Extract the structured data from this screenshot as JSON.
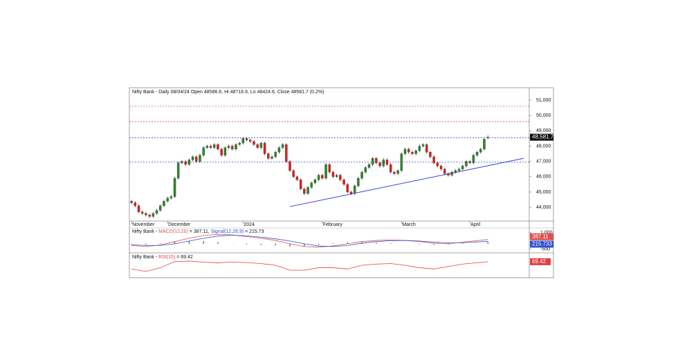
{
  "chart_data": {
    "type": "candlestick",
    "title": "Nifty Bank - Daily 08/04/24 Open 48586.6, Hi 48716.9, Lo 48424.6, Close 48581.7 (0.2%)",
    "up_color": "#2a8a2a",
    "down_color": "#e0201a",
    "xlim": [
      -0.6,
      110.5
    ],
    "xticks": [
      {
        "value": 0,
        "label": "November"
      },
      {
        "value": 10,
        "label": "December"
      },
      {
        "value": 31,
        "label": "2024"
      },
      {
        "value": 53,
        "label": "February"
      },
      {
        "value": 75,
        "label": "March"
      },
      {
        "value": 94,
        "label": "April"
      }
    ],
    "ylim": [
      43100,
      51770
    ],
    "yticks": [
      {
        "value": 44000,
        "label": "44,000"
      },
      {
        "value": 45000,
        "label": "45,000"
      },
      {
        "value": 46000,
        "label": "46,000"
      },
      {
        "value": 47000,
        "label": "47,000"
      },
      {
        "value": 48000,
        "label": "48,000"
      },
      {
        "value": 49000,
        "label": "49,000"
      },
      {
        "value": 50000,
        "label": "50,000"
      },
      {
        "value": 51000,
        "label": "51,000"
      }
    ],
    "close_label": "48,581.7",
    "open": [
      44400,
      44300,
      44100,
      43700,
      43600,
      43500,
      43400,
      43600,
      43800,
      44100,
      44400,
      44600,
      44700,
      45900,
      46900,
      47000,
      46800,
      47100,
      47300,
      47000,
      47400,
      47900,
      48000,
      47900,
      48100,
      47800,
      47400,
      47900,
      48000,
      47800,
      48100,
      48200,
      48500,
      48400,
      48300,
      48100,
      47900,
      48200,
      47500,
      47200,
      47300,
      47600,
      47900,
      48100,
      47000,
      46400,
      46000,
      45800,
      45200,
      44900,
      45300,
      45600,
      45800,
      46100,
      45900,
      46800,
      46300,
      46000,
      46100,
      45800,
      45500,
      45000,
      44900,
      45400,
      45900,
      46300,
      46600,
      46800,
      47200,
      46900,
      46700,
      47100,
      46800,
      46300,
      46200,
      46400,
      47500,
      47800,
      47600,
      47500,
      47700,
      48000,
      48100,
      47600,
      47300,
      46900,
      46700,
      46500,
      46200,
      46100,
      46300,
      46400,
      46500,
      46700,
      47000,
      46900,
      47400,
      47600,
      47800,
      48586.6
    ],
    "high": [
      44500,
      44400,
      44200,
      43800,
      43700,
      43600,
      43700,
      43900,
      44200,
      44500,
      44700,
      44800,
      46000,
      47000,
      47100,
      47100,
      47200,
      47400,
      47400,
      47500,
      48000,
      48100,
      48100,
      48200,
      48200,
      47900,
      48000,
      48100,
      48100,
      48200,
      48300,
      48600,
      48600,
      48500,
      48400,
      48200,
      48300,
      48300,
      47600,
      47400,
      47700,
      48000,
      48200,
      48200,
      47100,
      46500,
      46100,
      45900,
      45300,
      45400,
      45700,
      45900,
      46200,
      46200,
      46900,
      46900,
      46400,
      46200,
      46200,
      45900,
      45600,
      45100,
      45500,
      46000,
      46400,
      46700,
      46900,
      47300,
      47300,
      47000,
      47200,
      47200,
      46900,
      46400,
      46500,
      47600,
      47900,
      47900,
      47700,
      47800,
      48100,
      48200,
      48200,
      47700,
      47400,
      47000,
      46800,
      46600,
      46300,
      46400,
      46500,
      46600,
      46800,
      47100,
      47100,
      47500,
      47700,
      47900,
      48550,
      48716.9
    ],
    "low": [
      44200,
      44000,
      43600,
      43500,
      43400,
      43300,
      43300,
      43500,
      43700,
      44000,
      44300,
      44500,
      44600,
      45800,
      46800,
      46700,
      46700,
      47000,
      46900,
      46900,
      47300,
      47800,
      47800,
      47800,
      47700,
      47300,
      47300,
      47800,
      47700,
      47700,
      48000,
      48100,
      48300,
      48200,
      48000,
      47800,
      47800,
      47400,
      47100,
      47100,
      47200,
      47500,
      47800,
      46900,
      46300,
      45900,
      45700,
      45100,
      44800,
      44800,
      45200,
      45500,
      45700,
      45800,
      45800,
      46200,
      45900,
      45900,
      45700,
      45400,
      44900,
      44800,
      44800,
      45300,
      45800,
      46200,
      46500,
      46700,
      46800,
      46600,
      46600,
      46700,
      46200,
      46100,
      46100,
      46300,
      47400,
      47500,
      47400,
      47400,
      47600,
      47900,
      47500,
      47200,
      46800,
      46600,
      46400,
      46100,
      46000,
      46000,
      46200,
      46300,
      46400,
      46600,
      46800,
      46800,
      47300,
      47500,
      47700,
      48424.6
    ],
    "close": [
      44300,
      44100,
      43700,
      43600,
      43500,
      43400,
      43600,
      43800,
      44100,
      44400,
      44600,
      44700,
      45900,
      46900,
      47000,
      46800,
      47100,
      47300,
      47000,
      47400,
      47900,
      48000,
      47900,
      48100,
      47800,
      47400,
      47900,
      48000,
      47800,
      48100,
      48200,
      48500,
      48400,
      48300,
      48100,
      47900,
      48200,
      47500,
      47200,
      47300,
      47600,
      47900,
      48100,
      47000,
      46400,
      46000,
      45800,
      45200,
      44900,
      45300,
      45600,
      45800,
      46100,
      45900,
      46800,
      46300,
      46000,
      46100,
      45800,
      45500,
      45000,
      44900,
      45400,
      45900,
      46300,
      46600,
      46800,
      47200,
      46900,
      46700,
      47100,
      46800,
      46300,
      46200,
      46400,
      47500,
      47800,
      47600,
      47500,
      47700,
      48000,
      48100,
      47600,
      47300,
      46900,
      46700,
      46500,
      46200,
      46100,
      46300,
      46400,
      46500,
      46700,
      47000,
      46900,
      47400,
      47600,
      47800,
      48450,
      48581.7
    ],
    "levels": [
      {
        "value": 50600,
        "color": "#e05040"
      },
      {
        "value": 49600,
        "color": "#e05040"
      },
      {
        "value": 48550,
        "color": "#3040c0"
      },
      {
        "value": 46950,
        "color": "#3040c0"
      }
    ],
    "trendline": {
      "x": [
        44,
        109
      ],
      "y": [
        44045,
        47205
      ],
      "color": "#3040d0"
    },
    "macd": {
      "label": [
        "Nifty Bank - ",
        "MACD(12,26)",
        " = 387.11, ",
        "Signal(12,26,9)",
        " = 215.73"
      ],
      "ylim": [
        -820,
        1430
      ],
      "yticks": [
        {
          "value": 1000,
          "label": "1,000"
        },
        -500
      ],
      "x": [
        0,
        4,
        8,
        12,
        16,
        20,
        24,
        28,
        32,
        36,
        40,
        44,
        48,
        52,
        56,
        60,
        64,
        68,
        72,
        76,
        80,
        84,
        88,
        92,
        99
      ],
      "series": [
        {
          "name": "MACD",
          "color": "#e05050",
          "last_label": "387.11",
          "values": [
            -150,
            -250,
            -100,
            200,
            500,
            750,
            850,
            800,
            650,
            500,
            300,
            0,
            -250,
            -300,
            -200,
            0,
            200,
            300,
            350,
            300,
            200,
            50,
            0,
            150,
            387.11
          ]
        },
        {
          "name": "Signal",
          "color": "#3050d0",
          "last_label": "215.733",
          "values": [
            -100,
            -150,
            -150,
            0,
            250,
            500,
            700,
            780,
            720,
            600,
            450,
            250,
            0,
            -200,
            -250,
            -150,
            50,
            200,
            280,
            300,
            250,
            150,
            80,
            100,
            215.73
          ]
        }
      ],
      "histogram": [
        -50,
        -100,
        50,
        200,
        250,
        250,
        150,
        20,
        -70,
        -100,
        -150,
        -250,
        -250,
        -100,
        50,
        150,
        150,
        100,
        70,
        0,
        -50,
        -100,
        -80,
        50,
        171.38
      ]
    },
    "rsi": {
      "label": [
        "Nifty Bank - ",
        "RSI(15)",
        " = 69.42"
      ],
      "ylim": [
        10,
        100
      ],
      "color": "#e04040",
      "last_label": "69.42",
      "x": [
        0,
        4,
        8,
        12,
        16,
        20,
        24,
        28,
        32,
        36,
        40,
        44,
        48,
        52,
        56,
        60,
        64,
        68,
        72,
        76,
        80,
        84,
        88,
        92,
        99
      ],
      "values": [
        40,
        30,
        45,
        70,
        72,
        68,
        65,
        68,
        66,
        62,
        55,
        35,
        35,
        45,
        45,
        40,
        55,
        60,
        62,
        55,
        45,
        40,
        50,
        60,
        69.42
      ]
    }
  }
}
